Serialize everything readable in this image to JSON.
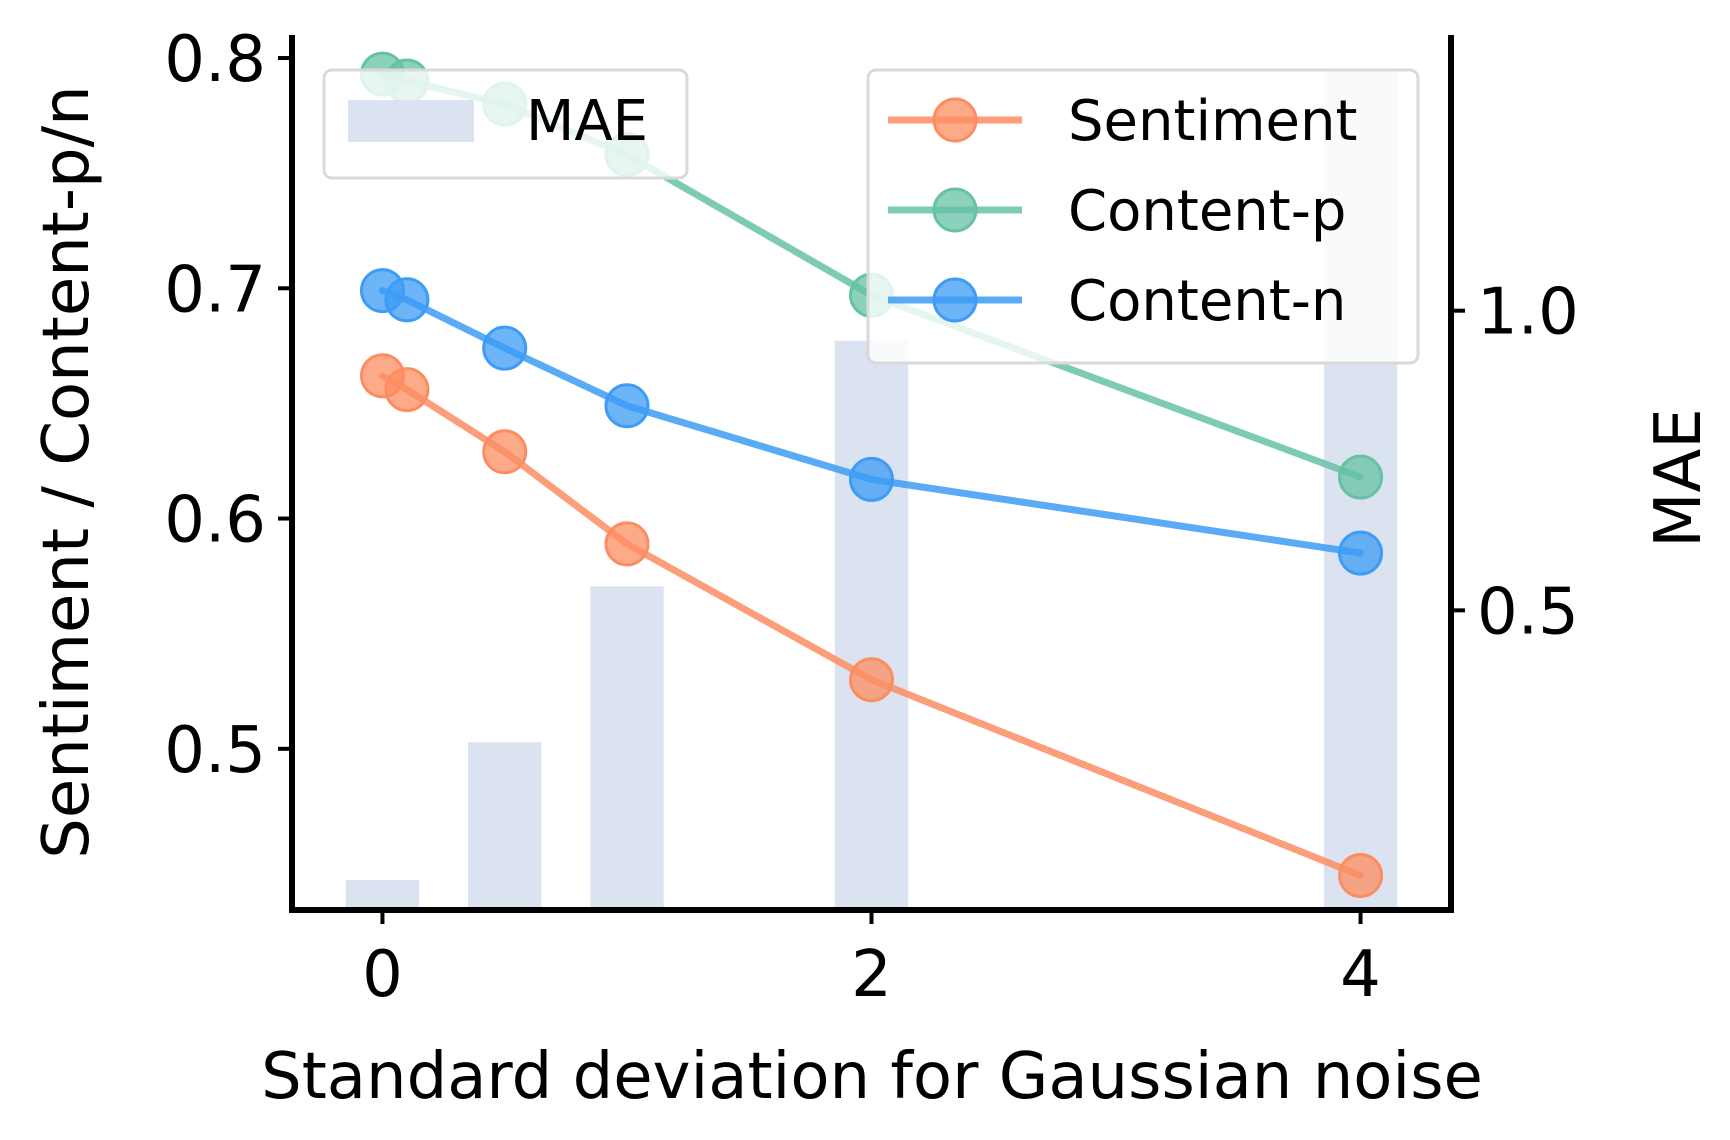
{
  "chart_data": {
    "type": "bar+line",
    "xlabel": "Standard deviation for Gaussian noise",
    "ylabel_left": "Sentiment / Content-p/n",
    "ylabel_right": "MAE",
    "x_ticks": [
      "0",
      "2",
      "4"
    ],
    "x_tick_values": [
      0,
      2,
      4
    ],
    "xlim": [
      -0.37,
      4.37
    ],
    "ylim_left": [
      0.43,
      0.81
    ],
    "y_ticks_left": [
      "0.5",
      "0.6",
      "0.7",
      "0.8"
    ],
    "y_tick_values_left": [
      0.5,
      0.6,
      0.7,
      0.8
    ],
    "ylim_right": [
      0.0,
      1.46
    ],
    "y_ticks_right": [
      "0.5",
      "1.0"
    ],
    "y_tick_values_right": [
      0.5,
      1.0
    ],
    "bars": {
      "name": "MAE",
      "x": [
        0,
        0.5,
        1,
        2,
        4
      ],
      "values": [
        0.05,
        0.28,
        0.54,
        0.95,
        1.4
      ],
      "color": "#dbe3f0"
    },
    "series": [
      {
        "name": "Sentiment",
        "color": "#fc8d62",
        "x": [
          0,
          0.1,
          0.5,
          1,
          2,
          4
        ],
        "values": [
          0.662,
          0.656,
          0.629,
          0.589,
          0.53,
          0.445
        ]
      },
      {
        "name": "Content-p",
        "color": "#66c2a5",
        "x": [
          0,
          0.1,
          0.5,
          1,
          2,
          4
        ],
        "values": [
          0.793,
          0.79,
          0.78,
          0.758,
          0.697,
          0.618
        ]
      },
      {
        "name": "Content-n",
        "color": "#3d9cf5",
        "x": [
          0,
          0.1,
          0.5,
          1,
          2,
          4
        ],
        "values": [
          0.699,
          0.695,
          0.674,
          0.649,
          0.617,
          0.585
        ]
      }
    ],
    "legend_bars_placement": "top-left",
    "legend_lines_placement": "top-right",
    "grid": false
  }
}
